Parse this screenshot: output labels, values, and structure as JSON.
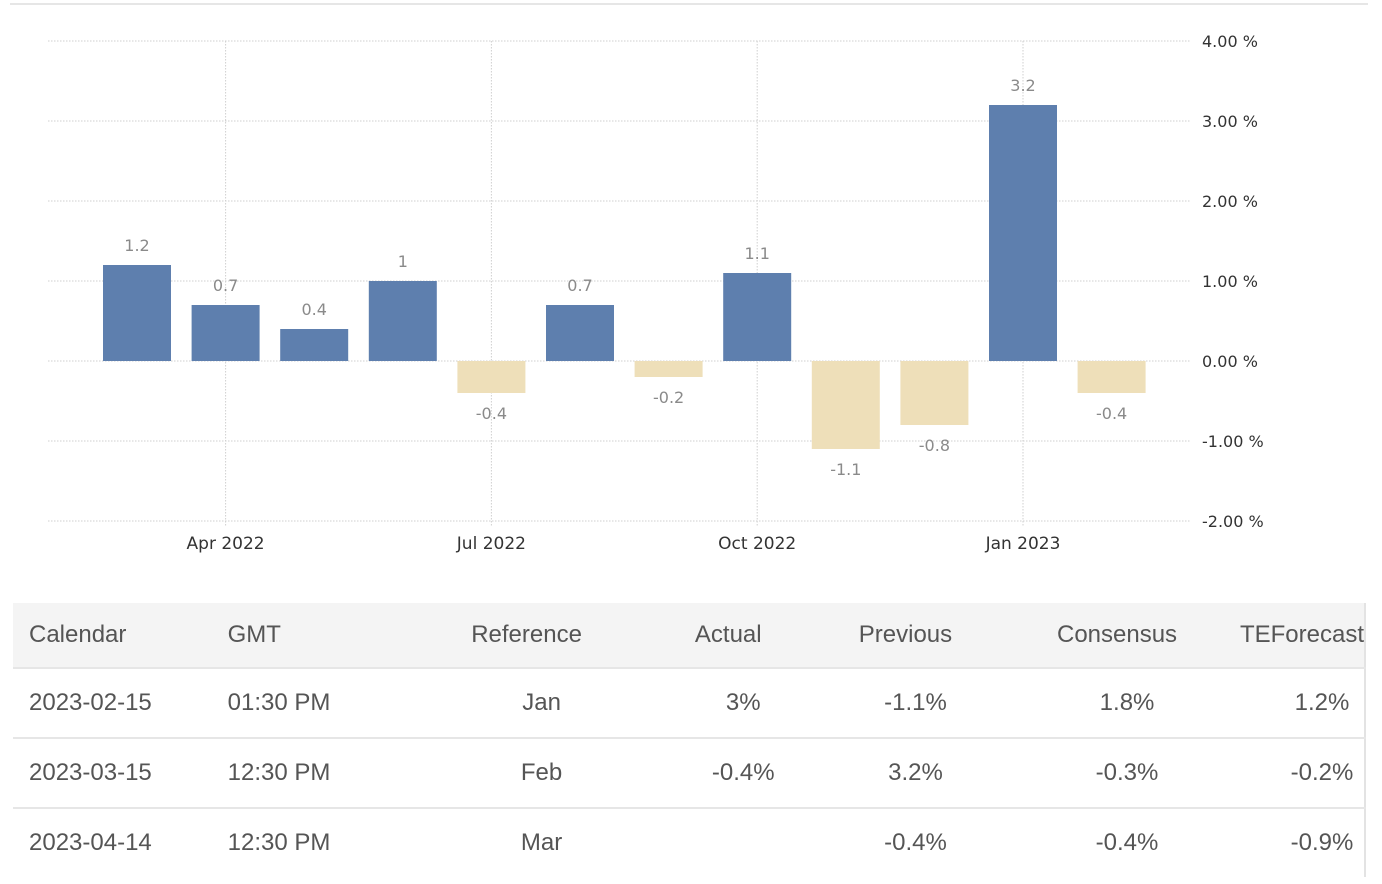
{
  "chart_data": {
    "type": "bar",
    "title": "",
    "xlabel": "",
    "ylabel": "",
    "ylim": [
      -2,
      4
    ],
    "grid": true,
    "legend": "none",
    "categories": [
      "Mar 2022",
      "Apr 2022",
      "May 2022",
      "Jun 2022",
      "Jul 2022",
      "Aug 2022",
      "Sep 2022",
      "Oct 2022",
      "Nov 2022",
      "Dec 2022",
      "Jan 2023",
      "Feb 2023"
    ],
    "values": [
      1.2,
      0.7,
      0.4,
      1,
      -0.4,
      0.7,
      -0.2,
      1.1,
      -1.1,
      -0.8,
      3.2,
      -0.4
    ],
    "data_labels": [
      "1.2",
      "0.7",
      "0.4",
      "1",
      "-0.4",
      "0.7",
      "-0.2",
      "1.1",
      "-1.1",
      "-0.8",
      "3.2",
      "-0.4"
    ],
    "x_tick_labels": [
      {
        "label": "Apr 2022",
        "category_index": 1
      },
      {
        "label": "Jul 2022",
        "category_index": 4
      },
      {
        "label": "Oct 2022",
        "category_index": 7
      },
      {
        "label": "Jan 2023",
        "category_index": 10
      }
    ],
    "y_ticks": [
      4,
      3,
      2,
      1,
      0,
      -1,
      -2
    ],
    "y_tick_labels": [
      "4.00 %",
      "3.00 %",
      "2.00 %",
      "1.00 %",
      "0.00 %",
      "-1.00 %",
      "-2.00 %"
    ],
    "colors": {
      "positive": "#5e7fae",
      "negative": "#eedfb9",
      "label": "#8a8a8a",
      "grid": "#cfcfcf"
    }
  },
  "calendar": {
    "headers": [
      "Calendar",
      "GMT",
      "Reference",
      "Actual",
      "Previous",
      "Consensus",
      "TEForecast"
    ],
    "rows": [
      {
        "calendar": "2023-02-15",
        "gmt": "01:30 PM",
        "reference": "Jan",
        "actual": "3%",
        "previous": "-1.1%",
        "consensus": "1.8%",
        "teforecast": "1.2%"
      },
      {
        "calendar": "2023-03-15",
        "gmt": "12:30 PM",
        "reference": "Feb",
        "actual": "-0.4%",
        "previous": "3.2%",
        "consensus": "-0.3%",
        "teforecast": "-0.2%"
      },
      {
        "calendar": "2023-04-14",
        "gmt": "12:30 PM",
        "reference": "Mar",
        "actual": "",
        "previous": "-0.4%",
        "consensus": "-0.4%",
        "teforecast": "-0.9%"
      }
    ]
  }
}
